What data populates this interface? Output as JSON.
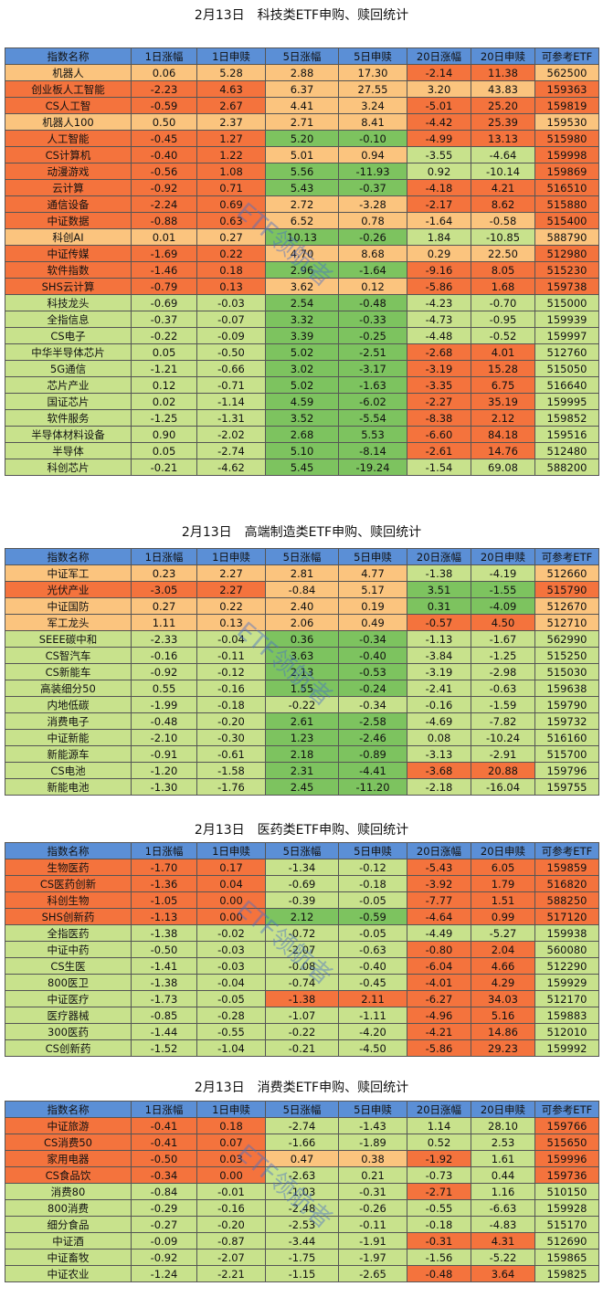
{
  "watermark": "ETF领航者",
  "palette": {
    "R": "#f4733d",
    "O": "#fbc47e",
    "G": "#c8e28c",
    "D": "#7dc35f"
  },
  "sections": [
    {
      "title": "2月13日　科技类ETF申购、赎回统计",
      "header": [
        "指数名称",
        "1日涨幅",
        "1日申赎",
        "5日涨幅",
        "5日申赎",
        "20日涨幅",
        "20日申赎",
        "可参考ETF"
      ],
      "rows": [
        [
          "机器人",
          "0.06",
          "5.28",
          "2.88",
          "17.30",
          "-2.14",
          "11.38",
          "562500"
        ],
        [
          "创业板人工智能",
          "-2.23",
          "4.63",
          "6.37",
          "27.55",
          "3.20",
          "43.83",
          "159363"
        ],
        [
          "CS人工智",
          "-0.59",
          "2.67",
          "4.41",
          "3.24",
          "-5.01",
          "25.20",
          "159819"
        ],
        [
          "机器人100",
          "0.50",
          "2.37",
          "2.71",
          "8.41",
          "-4.42",
          "25.39",
          "159530"
        ],
        [
          "人工智能",
          "-0.45",
          "1.27",
          "5.20",
          "-0.10",
          "-4.99",
          "13.13",
          "515980"
        ],
        [
          "CS计算机",
          "-0.40",
          "1.22",
          "5.01",
          "0.94",
          "-3.55",
          "-4.64",
          "159998"
        ],
        [
          "动漫游戏",
          "-0.56",
          "1.08",
          "5.56",
          "-11.93",
          "0.92",
          "-10.14",
          "159869"
        ],
        [
          "云计算",
          "-0.92",
          "0.71",
          "5.43",
          "-0.37",
          "-4.18",
          "4.21",
          "516510"
        ],
        [
          "通信设备",
          "-2.24",
          "0.69",
          "2.72",
          "-3.28",
          "-2.17",
          "8.62",
          "515880"
        ],
        [
          "中证数据",
          "-0.88",
          "0.63",
          "6.52",
          "0.78",
          "-1.64",
          "-0.58",
          "515400"
        ],
        [
          "科创AI",
          "0.01",
          "0.27",
          "10.13",
          "-0.26",
          "1.84",
          "-10.85",
          "588790"
        ],
        [
          "中证传媒",
          "-1.69",
          "0.22",
          "4.70",
          "8.68",
          "0.29",
          "22.50",
          "512980"
        ],
        [
          "软件指数",
          "-1.46",
          "0.18",
          "2.96",
          "-1.64",
          "-9.16",
          "8.05",
          "515230"
        ],
        [
          "SHS云计算",
          "-0.79",
          "0.13",
          "3.62",
          "0.12",
          "-5.86",
          "1.68",
          "159738"
        ],
        [
          "科技龙头",
          "-0.69",
          "-0.03",
          "2.54",
          "-0.48",
          "-4.23",
          "-0.70",
          "515000"
        ],
        [
          "全指信息",
          "-0.37",
          "-0.07",
          "3.32",
          "-0.33",
          "-4.73",
          "-0.95",
          "159939"
        ],
        [
          "CS电子",
          "-0.22",
          "-0.09",
          "3.39",
          "-0.25",
          "-4.48",
          "-0.52",
          "159997"
        ],
        [
          "中华半导体芯片",
          "0.05",
          "-0.50",
          "5.02",
          "-2.51",
          "-2.68",
          "4.01",
          "512760"
        ],
        [
          "5G通信",
          "-1.21",
          "-0.66",
          "3.02",
          "-3.17",
          "-3.19",
          "15.28",
          "515050"
        ],
        [
          "芯片产业",
          "0.12",
          "-0.71",
          "5.02",
          "-1.63",
          "-3.35",
          "6.75",
          "516640"
        ],
        [
          "国证芯片",
          "0.02",
          "-1.14",
          "4.59",
          "-6.02",
          "-2.27",
          "35.19",
          "159995"
        ],
        [
          "软件服务",
          "-1.25",
          "-1.31",
          "3.52",
          "-5.54",
          "-8.38",
          "2.12",
          "159852"
        ],
        [
          "半导体材料设备",
          "0.90",
          "-2.02",
          "2.68",
          "5.53",
          "-6.60",
          "84.18",
          "159516"
        ],
        [
          "半导体",
          "0.05",
          "-2.74",
          "5.10",
          "-8.14",
          "-2.61",
          "14.76",
          "512480"
        ],
        [
          "科创芯片",
          "-0.21",
          "-4.62",
          "5.45",
          "-19.24",
          "-1.54",
          "69.08",
          "588200"
        ]
      ],
      "shades": [
        "OOOOORRO",
        "RRROOOOR",
        "RRROORRR",
        "OOOOORRO",
        "RRRDDRRR",
        "RRROOGGR",
        "RRRDDGGR",
        "RRRDDRRR",
        "RRROORRR",
        "RRROOOOR",
        "OOODDGGO",
        "RRROOOOR",
        "RRRDDRRR",
        "RRROORRR",
        "GGGDDGGG",
        "GGGDDGGG",
        "GGGDDGGG",
        "GGGDDRRG",
        "GGGDDRRG",
        "GGGDDRRG",
        "GGGDDRRG",
        "GGGDDRRG",
        "GGGDDRRG",
        "GGGDDRRG",
        "GGGDDGGG"
      ]
    },
    {
      "title": "2月13日　高端制造类ETF申购、赎回统计",
      "header": [
        "指数名称",
        "1日涨幅",
        "1日申赎",
        "5日涨幅",
        "5日申赎",
        "20日涨幅",
        "20日申赎",
        "可参考ETF"
      ],
      "rows": [
        [
          "中证军工",
          "0.23",
          "2.27",
          "2.81",
          "4.77",
          "-1.38",
          "-4.19",
          "512660"
        ],
        [
          "光伏产业",
          "-3.05",
          "2.27",
          "-0.84",
          "5.17",
          "3.51",
          "-1.55",
          "515790"
        ],
        [
          "中证国防",
          "0.27",
          "0.22",
          "2.40",
          "0.19",
          "0.31",
          "-4.09",
          "512670"
        ],
        [
          "军工龙头",
          "1.11",
          "0.13",
          "2.06",
          "0.49",
          "-0.57",
          "4.50",
          "512710"
        ],
        [
          "SEEE碳中和",
          "-2.33",
          "-0.04",
          "0.36",
          "-0.34",
          "-1.13",
          "-1.67",
          "562990"
        ],
        [
          "CS智汽车",
          "-0.16",
          "-0.11",
          "3.63",
          "-0.40",
          "-3.84",
          "-1.25",
          "515250"
        ],
        [
          "CS新能车",
          "-0.92",
          "-0.12",
          "2.13",
          "-0.53",
          "-3.19",
          "-2.98",
          "515030"
        ],
        [
          "高装细分50",
          "0.55",
          "-0.16",
          "1.55",
          "-0.24",
          "-2.41",
          "-0.63",
          "159638"
        ],
        [
          "内地低碳",
          "-1.99",
          "-0.18",
          "-0.22",
          "-0.34",
          "-0.16",
          "-1.59",
          "159790"
        ],
        [
          "消费电子",
          "-0.48",
          "-0.20",
          "2.61",
          "-2.58",
          "-4.69",
          "-7.82",
          "159732"
        ],
        [
          "中证新能",
          "-2.10",
          "-0.30",
          "1.23",
          "-2.46",
          "0.08",
          "-10.24",
          "516160"
        ],
        [
          "新能源车",
          "-0.91",
          "-0.61",
          "2.18",
          "-0.89",
          "-3.13",
          "-2.91",
          "515700"
        ],
        [
          "CS电池",
          "-1.20",
          "-1.58",
          "2.31",
          "-4.41",
          "-3.68",
          "20.88",
          "159796"
        ],
        [
          "新能电池",
          "-1.30",
          "-1.76",
          "2.45",
          "-11.20",
          "-2.18",
          "-16.04",
          "159755"
        ]
      ],
      "shades": [
        "OOOOOGGO",
        "RRROODDR",
        "OOOOODDO",
        "OOOOORRO",
        "GGGDDGGG",
        "GGGDDGGG",
        "GGGDDGGG",
        "GGGDDGGG",
        "GGGGGGGG",
        "GGGDDGGG",
        "GGGDDGGG",
        "GGGDDGGG",
        "GGGDDRRG",
        "GGGDDGGG"
      ]
    },
    {
      "title": "2月13日　医药类ETF申购、赎回统计",
      "header": [
        "指数名称",
        "1日涨幅",
        "1日申赎",
        "5日涨幅",
        "5日申赎",
        "20日涨幅",
        "20日申赎",
        "可参考ETF"
      ],
      "rows": [
        [
          "生物医药",
          "-1.70",
          "0.17",
          "-1.34",
          "-0.12",
          "-5.43",
          "6.05",
          "159859"
        ],
        [
          "CS医药创新",
          "-1.36",
          "0.04",
          "-0.69",
          "-0.18",
          "-3.92",
          "1.79",
          "516820"
        ],
        [
          "科创生物",
          "-1.05",
          "0.00",
          "-0.39",
          "-0.05",
          "-7.77",
          "1.51",
          "588250"
        ],
        [
          "SHS创新药",
          "-1.13",
          "0.00",
          "2.12",
          "-0.59",
          "-4.64",
          "0.99",
          "517120"
        ],
        [
          "全指医药",
          "-1.38",
          "-0.02",
          "-0.72",
          "-0.05",
          "-4.49",
          "-5.27",
          "159938"
        ],
        [
          "中证中药",
          "-0.50",
          "-0.03",
          "-2.07",
          "-0.63",
          "-0.80",
          "2.04",
          "560080"
        ],
        [
          "CS生医",
          "-1.41",
          "-0.03",
          "-0.08",
          "-0.40",
          "-6.04",
          "4.66",
          "512290"
        ],
        [
          "800医卫",
          "-1.38",
          "-0.04",
          "-0.74",
          "-0.45",
          "-4.01",
          "4.29",
          "159929"
        ],
        [
          "中证医疗",
          "-1.73",
          "-0.05",
          "-1.38",
          "2.11",
          "-6.27",
          "34.03",
          "512170"
        ],
        [
          "医疗器械",
          "-0.85",
          "-0.28",
          "-1.07",
          "-1.11",
          "-4.96",
          "5.16",
          "159883"
        ],
        [
          "300医药",
          "-1.44",
          "-0.55",
          "-0.22",
          "-4.20",
          "-4.21",
          "14.86",
          "512010"
        ],
        [
          "CS创新药",
          "-1.52",
          "-1.04",
          "-0.21",
          "-4.50",
          "-5.86",
          "29.23",
          "159992"
        ]
      ],
      "shades": [
        "RRRGGRRR",
        "RRRGGRRR",
        "RRRGGRRR",
        "RRRDDRRR",
        "GGGGGGGG",
        "GGGGGRRG",
        "GGGGGRRG",
        "GGGGGRRG",
        "GGGRRRRG",
        "GGGGGRRG",
        "GGGGGRRG",
        "GGGGGRRG"
      ]
    },
    {
      "title": "2月13日　消费类ETF申购、赎回统计",
      "header": [
        "指数名称",
        "1日涨幅",
        "1日申赎",
        "5日涨幅",
        "5日申赎",
        "20日涨幅",
        "20日申赎",
        "可参考ETF"
      ],
      "rows": [
        [
          "中证旅游",
          "-0.41",
          "0.18",
          "-2.74",
          "-1.43",
          "1.14",
          "28.10",
          "159766"
        ],
        [
          "CS消费50",
          "-0.41",
          "0.07",
          "-1.66",
          "-1.89",
          "0.52",
          "2.53",
          "515650"
        ],
        [
          "家用电器",
          "-0.50",
          "0.03",
          "0.47",
          "0.38",
          "-1.92",
          "1.61",
          "159996"
        ],
        [
          "CS食品饮",
          "-0.34",
          "0.00",
          "-2.63",
          "0.21",
          "-0.73",
          "0.44",
          "159736"
        ],
        [
          "消费80",
          "-0.84",
          "-0.01",
          "-1.03",
          "-0.31",
          "-2.71",
          "1.16",
          "510150"
        ],
        [
          "800消费",
          "-0.29",
          "-0.16",
          "-2.48",
          "-0.26",
          "-0.55",
          "-6.63",
          "159928"
        ],
        [
          "细分食品",
          "-0.27",
          "-0.20",
          "-2.53",
          "-0.11",
          "-0.18",
          "-4.83",
          "515170"
        ],
        [
          "中证酒",
          "-0.09",
          "-0.87",
          "-3.44",
          "-1.91",
          "-0.31",
          "4.31",
          "512690"
        ],
        [
          "中证畜牧",
          "-0.92",
          "-2.07",
          "-1.75",
          "-1.97",
          "-1.56",
          "-5.22",
          "159865"
        ],
        [
          "中证农业",
          "-1.24",
          "-2.21",
          "-1.15",
          "-2.65",
          "-0.48",
          "3.64",
          "159825"
        ]
      ],
      "shades": [
        "RRRGGGGR",
        "RRRGGGGR",
        "RRROORGR",
        "RRRGGGGR",
        "GGGGGRGG",
        "GGGGGGGG",
        "GGGGGGGG",
        "GGGGGRRG",
        "GGGGGGGG",
        "GGGGGRRG"
      ]
    }
  ]
}
